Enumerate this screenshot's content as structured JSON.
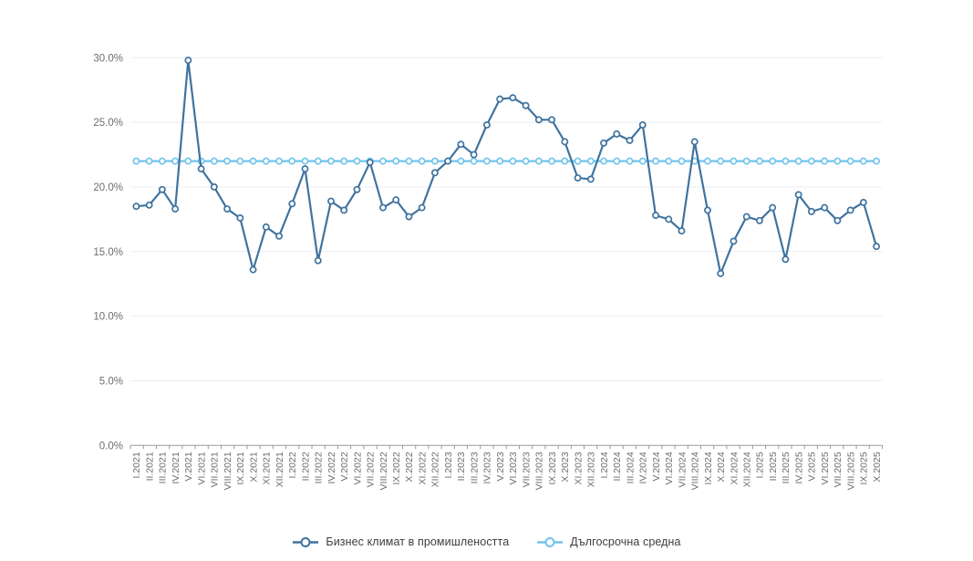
{
  "legend": {
    "items": [
      {
        "label": "Бизнес климат в промишлеността",
        "color": "#40739f"
      },
      {
        "label": "Дългосрочна средна",
        "color": "#72c3ec"
      }
    ]
  },
  "chart_data": {
    "type": "line",
    "title": "",
    "xlabel": "",
    "ylabel": "",
    "ylim": [
      0,
      30
    ],
    "grid": true,
    "legend_position": "bottom",
    "ytick_values": [
      0,
      5,
      10,
      15,
      20,
      25,
      30
    ],
    "ytick_labels": [
      "0.0%",
      "5.0%",
      "10.0%",
      "15.0%",
      "20.0%",
      "25.0%",
      "30.0%"
    ],
    "x": [
      "I.2021",
      "II.2021",
      "III.2021",
      "IV.2021",
      "V.2021",
      "VI.2021",
      "VII.2021",
      "VIII.2021",
      "IX.2021",
      "X.2021",
      "XI.2021",
      "XII.2021",
      "I.2022",
      "II.2022",
      "III.2022",
      "IV.2022",
      "V.2022",
      "VI.2022",
      "VII.2022",
      "VIII.2022",
      "IX.2022",
      "X.2022",
      "XI.2022",
      "XII.2022",
      "I.2023",
      "II.2023",
      "III.2023",
      "IV.2023",
      "V.2023",
      "VI.2023",
      "VII.2023",
      "VIII.2023",
      "IX.2023",
      "X.2023",
      "XI.2023",
      "XII.2023",
      "I.2024",
      "II.2024",
      "III.2024",
      "IV.2024",
      "V.2024",
      "VI.2024",
      "VII.2024",
      "VIII.2024",
      "IX.2024",
      "X.2024",
      "XI.2024",
      "XII.2024",
      "I.2025",
      "II.2025",
      "III.2025",
      "IV.2025",
      "V.2025",
      "VI.2025",
      "VII.2025",
      "VIII.2025",
      "IX.2025",
      "X.2025"
    ],
    "series": [
      {
        "name": "Бизнес климат в промишлеността",
        "color": "#40739f",
        "values": [
          18.5,
          18.6,
          19.8,
          18.3,
          29.8,
          21.4,
          20.0,
          18.3,
          17.6,
          13.6,
          16.9,
          16.2,
          18.7,
          21.4,
          14.3,
          18.9,
          18.2,
          19.8,
          21.9,
          18.4,
          19.0,
          17.7,
          18.4,
          21.1,
          22.0,
          23.3,
          22.5,
          24.8,
          26.8,
          26.9,
          26.3,
          25.2,
          25.2,
          23.5,
          20.7,
          20.6,
          23.4,
          24.1,
          23.6,
          24.8,
          17.8,
          17.5,
          16.6,
          23.5,
          18.2,
          13.3,
          15.8,
          17.7,
          17.4,
          18.4,
          14.4,
          19.4,
          18.1,
          18.4,
          17.4,
          18.2,
          18.8,
          15.4
        ]
      },
      {
        "name": "Дългосрочна средна",
        "color": "#72c3ec",
        "values": [
          22,
          22,
          22,
          22,
          22,
          22,
          22,
          22,
          22,
          22,
          22,
          22,
          22,
          22,
          22,
          22,
          22,
          22,
          22,
          22,
          22,
          22,
          22,
          22,
          22,
          22,
          22,
          22,
          22,
          22,
          22,
          22,
          22,
          22,
          22,
          22,
          22,
          22,
          22,
          22,
          22,
          22,
          22,
          22,
          22,
          22,
          22,
          22,
          22,
          22,
          22,
          22,
          22,
          22,
          22,
          22,
          22,
          22
        ]
      }
    ],
    "style": {
      "gridline_color": "#e8eef4",
      "axis_color": "#9b9b9b",
      "tick_label_color": "#6e6e6e",
      "marker_fill": "#ffffff"
    }
  }
}
